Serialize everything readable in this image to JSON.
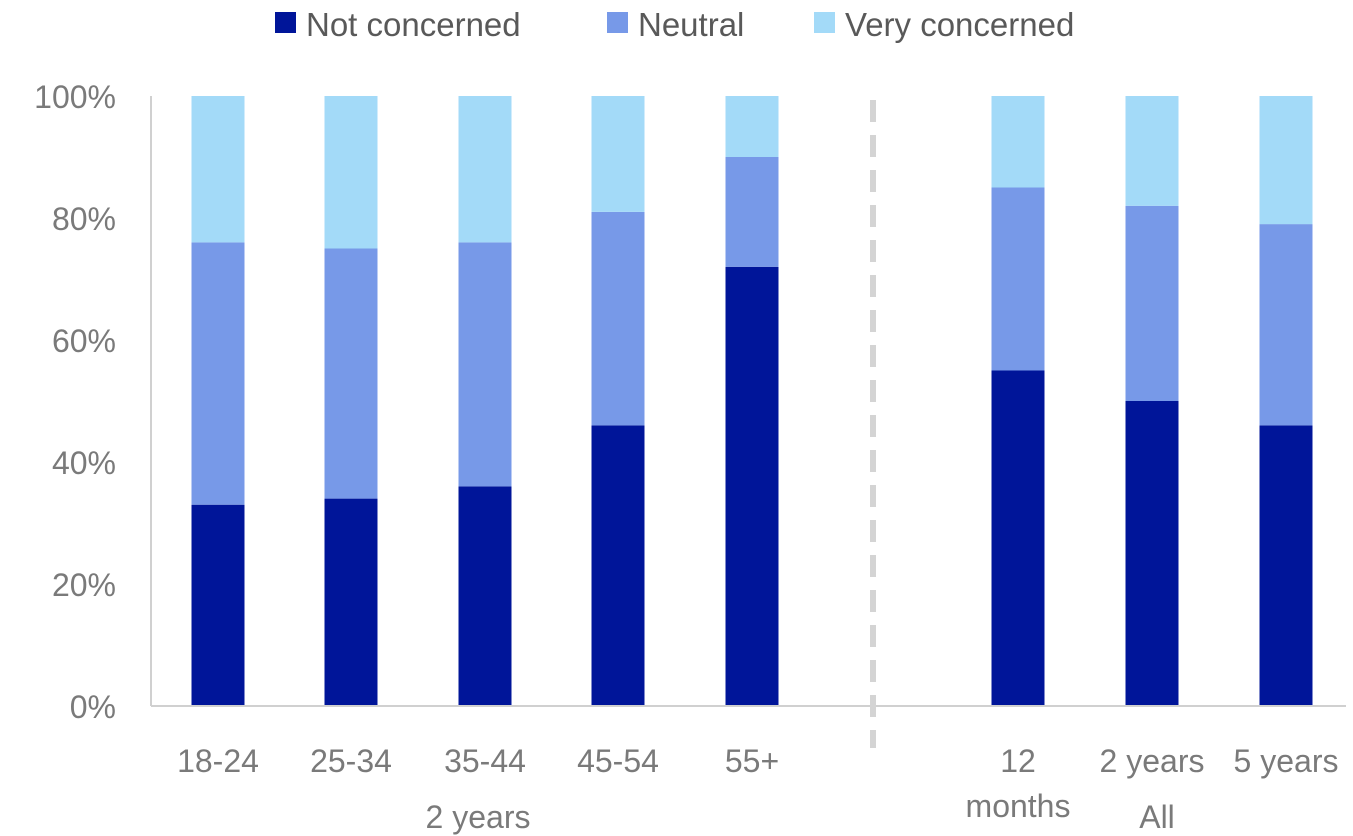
{
  "chart_data": {
    "type": "bar",
    "stacked": true,
    "title": "",
    "xlabel": "",
    "ylabel": "",
    "ylim": [
      0,
      100
    ],
    "y_ticks": [
      "0%",
      "20%",
      "40%",
      "60%",
      "80%",
      "100%"
    ],
    "grid": false,
    "legend_position": "top",
    "categories": [
      "18-24",
      "25-34",
      "35-44",
      "45-54",
      "55+",
      "12 months",
      "2 years",
      "5 years"
    ],
    "groups": [
      {
        "label": "2 years",
        "categories": [
          "18-24",
          "25-34",
          "35-44",
          "45-54",
          "55+"
        ]
      },
      {
        "label": "All",
        "categories": [
          "12 months",
          "2 years",
          "5 years"
        ]
      }
    ],
    "series": [
      {
        "name": "Not concerned",
        "color": "#001599",
        "values": [
          33,
          34,
          36,
          46,
          72,
          55,
          50,
          46
        ]
      },
      {
        "name": "Neutral",
        "color": "#7799e8",
        "values": [
          43,
          41,
          40,
          35,
          18,
          30,
          32,
          33
        ]
      },
      {
        "name": "Very concerned",
        "color": "#a3daf8",
        "values": [
          24,
          25,
          24,
          19,
          10,
          15,
          18,
          21
        ]
      }
    ]
  }
}
